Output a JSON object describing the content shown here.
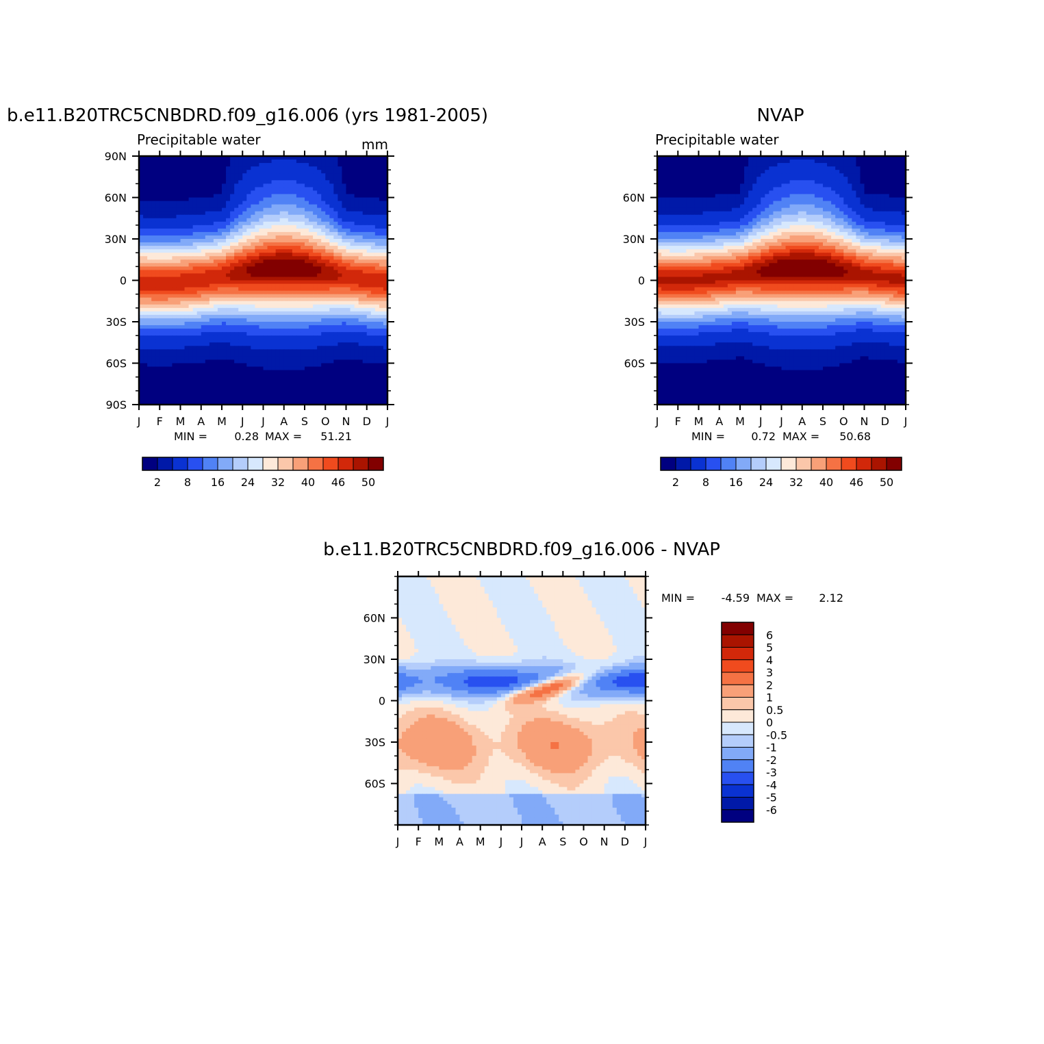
{
  "chart_data": [
    {
      "type": "heatmap",
      "title": "b.e11.B20TRC5CNBDRD.f09_g16.006 (yrs 1981-2005)",
      "left_label": "Precipitable water",
      "right_label": "mm",
      "x_ticks": [
        "J",
        "F",
        "M",
        "A",
        "M",
        "J",
        "J",
        "A",
        "S",
        "O",
        "N",
        "D",
        "J"
      ],
      "y_ticks": [
        "90N",
        "60N",
        "30N",
        "0",
        "30S",
        "60S",
        "90S"
      ],
      "y_range": [
        -90,
        90
      ],
      "min_label": "MIN =",
      "min_value": "0.28",
      "max_label": "MAX =",
      "max_value": "51.21",
      "colorbar": {
        "orientation": "horizontal",
        "labels": [
          "2",
          "8",
          "16",
          "24",
          "32",
          "40",
          "46",
          "50"
        ],
        "colors": [
          "#000080",
          "#0019a8",
          "#0a32d2",
          "#2850f0",
          "#5082f5",
          "#82aaf8",
          "#b4cdfb",
          "#d7e8fd",
          "#fde9d9",
          "#fbc7aa",
          "#f8a078",
          "#f57244",
          "#f04b1e",
          "#d2280a",
          "#aa1400",
          "#820000"
        ]
      },
      "field_model": {
        "equator_max_mm": 51.21,
        "itcz_lat_range": [
          -8,
          10
        ],
        "itcz_peak_month": "A"
      }
    },
    {
      "type": "heatmap",
      "title": "NVAP",
      "left_label": "Precipitable water",
      "x_ticks": [
        "J",
        "F",
        "M",
        "A",
        "M",
        "J",
        "J",
        "A",
        "S",
        "O",
        "N",
        "D",
        "J"
      ],
      "y_ticks": [
        "60N",
        "30N",
        "0",
        "30S",
        "60S"
      ],
      "y_range": [
        -90,
        90
      ],
      "min_label": "MIN =",
      "min_value": "0.72",
      "max_label": "MAX =",
      "max_value": "50.68",
      "colorbar": {
        "orientation": "horizontal",
        "labels": [
          "2",
          "8",
          "16",
          "24",
          "32",
          "40",
          "46",
          "50"
        ],
        "colors": [
          "#000080",
          "#0019a8",
          "#0a32d2",
          "#2850f0",
          "#5082f5",
          "#82aaf8",
          "#b4cdfb",
          "#d7e8fd",
          "#fde9d9",
          "#fbc7aa",
          "#f8a078",
          "#f57244",
          "#f04b1e",
          "#d2280a",
          "#aa1400",
          "#820000"
        ]
      },
      "field_model": {
        "equator_max_mm": 50.68,
        "itcz_lat_range": [
          0,
          10
        ],
        "itcz_peak_month": "A"
      }
    },
    {
      "type": "heatmap",
      "title": "b.e11.B20TRC5CNBDRD.f09_g16.006 - NVAP",
      "x_ticks": [
        "J",
        "F",
        "M",
        "A",
        "M",
        "J",
        "J",
        "A",
        "S",
        "O",
        "N",
        "D",
        "J"
      ],
      "y_ticks": [
        "60N",
        "30N",
        "0",
        "30S",
        "60S"
      ],
      "y_range": [
        -90,
        90
      ],
      "min_label": "MIN =",
      "min_value": "-4.59",
      "max_label": "MAX =",
      "max_value": "2.12",
      "colorbar": {
        "orientation": "vertical",
        "labels": [
          "6",
          "5",
          "4",
          "3",
          "2",
          "1",
          "0.5",
          "0",
          "-0.5",
          "-1",
          "-2",
          "-3",
          "-4",
          "-5",
          "-6"
        ],
        "colors": [
          "#820000",
          "#aa1400",
          "#d2280a",
          "#f04b1e",
          "#f57244",
          "#f8a078",
          "#fbc7aa",
          "#fde9d9",
          "#d7e8fd",
          "#b4cdfb",
          "#82aaf8",
          "#5082f5",
          "#2850f0",
          "#0a32d2",
          "#0019a8",
          "#000080"
        ]
      },
      "field_model": {
        "blue_band_lat_range": [
          -5,
          30
        ],
        "red_band_lat_range": [
          -65,
          -5
        ]
      }
    }
  ]
}
